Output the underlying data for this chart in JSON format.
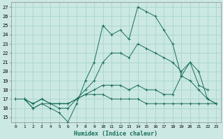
{
  "background_color": "#cbe8e3",
  "grid_color": "#a8d5cc",
  "line_color": "#1a6e5a",
  "xlabel": "Humidex (Indice chaleur)",
  "xlim": [
    -0.5,
    23.5
  ],
  "ylim": [
    14.5,
    27.5
  ],
  "xticks": [
    0,
    1,
    2,
    3,
    4,
    5,
    6,
    7,
    8,
    9,
    10,
    11,
    12,
    13,
    14,
    15,
    16,
    17,
    18,
    19,
    20,
    21,
    22,
    23
  ],
  "yticks": [
    15,
    16,
    17,
    18,
    19,
    20,
    21,
    22,
    23,
    24,
    25,
    26,
    27
  ],
  "series": [
    {
      "x": [
        0,
        1,
        2,
        3,
        4,
        5,
        6,
        7,
        8,
        9,
        10,
        11,
        12,
        13,
        14,
        15,
        16,
        17,
        18,
        19,
        20,
        21,
        22,
        23
      ],
      "y": [
        17,
        17,
        16,
        16.5,
        16,
        15.5,
        14.5,
        16.5,
        19,
        21,
        25,
        24,
        24.5,
        23.5,
        27,
        26.5,
        26,
        24.5,
        23,
        19.5,
        21,
        18.5,
        18,
        null
      ]
    },
    {
      "x": [
        0,
        1,
        2,
        3,
        4,
        5,
        6,
        7,
        8,
        9,
        10,
        11,
        12,
        13,
        14,
        15,
        16,
        17,
        18,
        19,
        20,
        21,
        22,
        23
      ],
      "y": [
        17,
        17,
        16,
        16.5,
        16.5,
        16,
        16,
        17,
        18,
        19,
        21,
        22,
        22,
        21.5,
        23,
        22.5,
        22,
        21.5,
        21,
        20,
        21,
        20,
        17,
        16.5
      ]
    },
    {
      "x": [
        0,
        1,
        2,
        3,
        4,
        5,
        6,
        7,
        8,
        9,
        10,
        11,
        12,
        13,
        14,
        15,
        16,
        17,
        18,
        19,
        20,
        21,
        22,
        23
      ],
      "y": [
        17,
        17,
        16.5,
        17,
        16.5,
        16.5,
        16.5,
        17,
        17.5,
        18,
        18.5,
        18.5,
        18.5,
        18,
        18.5,
        18,
        18,
        17.5,
        17.5,
        19.5,
        19,
        18,
        17,
        16.5
      ]
    },
    {
      "x": [
        0,
        1,
        2,
        3,
        4,
        5,
        6,
        7,
        8,
        9,
        10,
        11,
        12,
        13,
        14,
        15,
        16,
        17,
        18,
        19,
        20,
        21,
        22,
        23
      ],
      "y": [
        17,
        17,
        16.5,
        17,
        16.5,
        16.5,
        16.5,
        17,
        17.5,
        17.5,
        17.5,
        17,
        17,
        17,
        17,
        16.5,
        16.5,
        16.5,
        16.5,
        16.5,
        16.5,
        16.5,
        16.5,
        16.5
      ]
    }
  ]
}
